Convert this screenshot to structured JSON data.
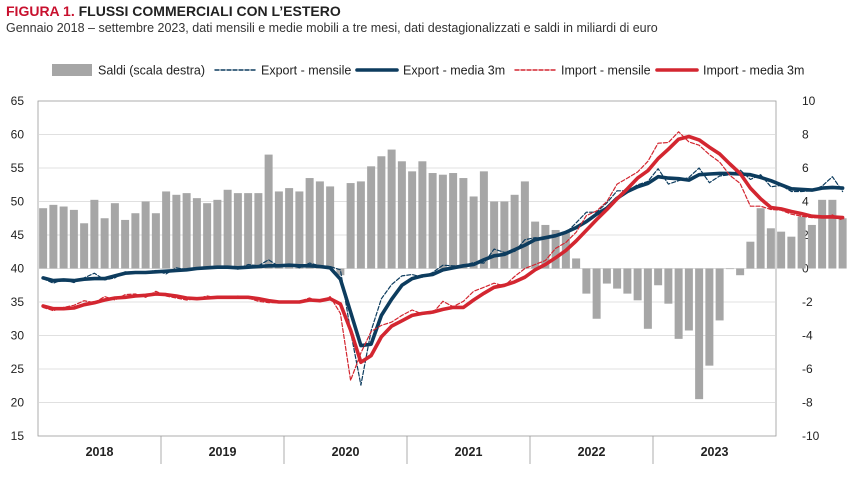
{
  "header": {
    "figure_label": "FIGURA 1.",
    "title": "FLUSSI COMMERCIALI CON L’ESTERO",
    "subtitle": "Gennaio 2018 – settembre 2023, dati mensili e medie mobili a tre mesi, dati destagionalizzati e saldi in miliardi di euro"
  },
  "chart_data": {
    "type": "bar",
    "x_labels": [
      "2018",
      "2019",
      "2020",
      "2021",
      "2022",
      "2023"
    ],
    "x_start": "2018-01",
    "y_left": {
      "lim": [
        15,
        65
      ],
      "ticks": [
        15,
        20,
        25,
        30,
        35,
        40,
        45,
        50,
        55,
        60,
        65
      ]
    },
    "y_right": {
      "lim": [
        -10,
        10
      ],
      "ticks": [
        -10,
        -8,
        -6,
        -4,
        -2,
        0,
        2,
        4,
        6,
        8,
        10
      ]
    },
    "grid": true,
    "legend_position": "top",
    "colors": {
      "bars": "#a6a6a6",
      "export": "#0d3c5e",
      "import": "#d32630"
    },
    "series": [
      {
        "name": "Saldi (scala destra)",
        "kind": "bar",
        "axis": "right",
        "values": [
          3.6,
          3.8,
          3.7,
          3.5,
          2.7,
          4.1,
          3.0,
          3.9,
          2.9,
          3.3,
          4.0,
          3.3,
          4.6,
          4.4,
          4.5,
          4.2,
          3.9,
          4.1,
          4.7,
          4.5,
          4.5,
          4.5,
          6.8,
          4.6,
          4.8,
          4.6,
          5.4,
          5.2,
          4.9,
          -0.4,
          5.1,
          5.2,
          6.1,
          6.7,
          7.1,
          6.4,
          5.8,
          6.4,
          5.7,
          5.6,
          5.7,
          5.4,
          4.3,
          5.8,
          4.0,
          4.0,
          4.4,
          5.2,
          2.8,
          2.6,
          2.3,
          2.2,
          0.6,
          -1.5,
          -3.0,
          -0.9,
          -1.2,
          -1.5,
          -1.9,
          -3.6,
          -1.0,
          -2.1,
          -4.2,
          -3.7,
          -7.8,
          -5.8,
          -3.1,
          0.0,
          -0.4,
          1.6,
          3.6,
          2.4,
          2.2,
          1.9,
          3.1,
          2.6,
          4.1,
          4.1,
          3.0
        ]
      },
      {
        "name": "Export - mensile",
        "kind": "line-dashed",
        "axis": "left",
        "values": [
          38.5,
          37.8,
          38.4,
          37.9,
          38.6,
          39.3,
          38.3,
          38.6,
          39.5,
          39.3,
          39.5,
          39.7,
          39.2,
          40.1,
          39.8,
          40.0,
          40.2,
          40.3,
          40.3,
          39.9,
          40.6,
          40.4,
          41.3,
          40.3,
          40.6,
          40.1,
          40.8,
          40.4,
          40.3,
          39.8,
          30.6,
          22.6,
          30.7,
          35.5,
          37.6,
          38.9,
          39.1,
          38.7,
          39.4,
          40.5,
          40.4,
          40.4,
          40.9,
          40.8,
          42.9,
          42.4,
          42.5,
          44.3,
          44.6,
          44.5,
          45.0,
          45.3,
          46.8,
          48.4,
          48.4,
          49.8,
          51.6,
          51.6,
          52.5,
          53.0,
          54.9,
          52.6,
          53.1,
          53.6,
          55.0,
          52.8,
          53.8,
          54.0,
          54.7,
          53.3,
          54.0,
          52.2,
          52.4,
          51.5,
          51.5,
          51.6,
          52.3,
          53.7,
          51.5
        ]
      },
      {
        "name": "Export - media 3m",
        "kind": "line",
        "axis": "left",
        "values": [
          38.6,
          38.2,
          38.3,
          38.2,
          38.4,
          38.5,
          38.5,
          38.9,
          39.3,
          39.4,
          39.4,
          39.5,
          39.6,
          39.7,
          39.8,
          40.0,
          40.1,
          40.2,
          40.2,
          40.1,
          40.2,
          40.3,
          40.4,
          40.4,
          40.5,
          40.4,
          40.4,
          40.3,
          40.1,
          38.4,
          33.5,
          28.5,
          28.7,
          33.0,
          35.4,
          37.5,
          38.5,
          38.9,
          39.1,
          39.8,
          40.1,
          40.4,
          40.6,
          41.3,
          41.9,
          42.1,
          42.8,
          43.5,
          44.3,
          44.6,
          44.9,
          45.4,
          46.1,
          47.0,
          48.1,
          49.0,
          50.5,
          51.5,
          52.2,
          52.7,
          53.7,
          53.5,
          53.4,
          53.2,
          54.0,
          54.1,
          54.2,
          54.2,
          54.1,
          54.0,
          53.6,
          53.1,
          52.5,
          51.9,
          51.8,
          51.7,
          52.0,
          52.1,
          52.0
        ]
      },
      {
        "name": "Import - mensile",
        "kind": "line-dashed",
        "axis": "left",
        "values": [
          34.2,
          33.7,
          34.2,
          34.5,
          35.2,
          34.9,
          35.8,
          35.3,
          36.1,
          36.2,
          35.7,
          36.6,
          35.9,
          35.6,
          35.3,
          35.5,
          35.9,
          35.6,
          35.6,
          35.9,
          35.6,
          35.1,
          34.9,
          34.9,
          35.1,
          35.1,
          35.6,
          35.0,
          35.8,
          33.3,
          23.3,
          27.4,
          30.6,
          31.5,
          32.0,
          33.0,
          33.8,
          33.2,
          33.3,
          35.1,
          34.3,
          35.1,
          36.6,
          37.2,
          37.8,
          37.4,
          38.8,
          40.0,
          40.6,
          41.2,
          43.0,
          43.9,
          45.4,
          47.9,
          48.6,
          50.0,
          52.6,
          53.5,
          54.4,
          56.0,
          58.7,
          58.8,
          60.4,
          58.9,
          58.4,
          57.0,
          55.9,
          53.9,
          52.7,
          49.3,
          49.3,
          48.8,
          48.7,
          48.1,
          47.8,
          47.6,
          47.6,
          48.0,
          47.2
        ]
      },
      {
        "name": "Import - media 3m",
        "kind": "line",
        "axis": "left",
        "values": [
          34.4,
          34.0,
          34.0,
          34.1,
          34.6,
          34.9,
          35.3,
          35.6,
          35.7,
          35.9,
          36.0,
          36.2,
          36.1,
          35.9,
          35.6,
          35.5,
          35.6,
          35.7,
          35.7,
          35.7,
          35.7,
          35.5,
          35.2,
          35.0,
          35.0,
          35.0,
          35.3,
          35.2,
          35.5,
          34.7,
          30.8,
          26.0,
          27.0,
          29.8,
          31.4,
          32.2,
          33.0,
          33.3,
          33.5,
          33.9,
          34.2,
          34.2,
          35.3,
          36.3,
          37.2,
          37.5,
          38.0,
          38.7,
          39.8,
          40.6,
          41.6,
          42.7,
          44.1,
          45.7,
          47.3,
          48.8,
          50.4,
          51.9,
          53.5,
          54.6,
          56.4,
          57.8,
          59.3,
          59.7,
          59.2,
          58.1,
          57.1,
          55.6,
          54.2,
          52.0,
          50.4,
          49.1,
          48.9,
          48.5,
          48.2,
          47.8,
          47.7,
          47.7,
          47.6
        ]
      }
    ]
  }
}
